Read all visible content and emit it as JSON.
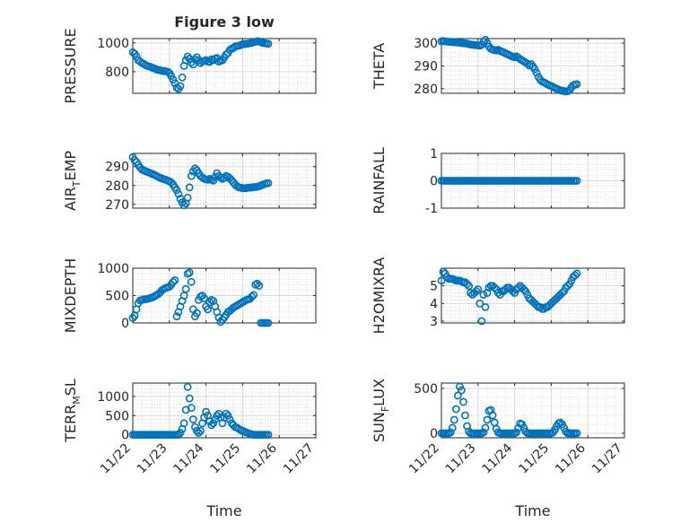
{
  "figure": {
    "title": "Figure 3 low",
    "xlabel": "Time",
    "xticks": [
      "11/22",
      "11/23",
      "11/24",
      "11/25",
      "11/26",
      "11/27"
    ],
    "marker_color": "#0072BD",
    "grid_color": "#d9d9d9",
    "axis_color": "#262626"
  },
  "chart_data": [
    {
      "type": "scatter",
      "ylabel": "PRESSURE",
      "ylim": [
        650,
        1030
      ],
      "yticks": [
        800,
        1000
      ],
      "xlim": [
        0,
        5
      ],
      "x": [
        0.0,
        0.05,
        0.1,
        0.15,
        0.2,
        0.25,
        0.3,
        0.35,
        0.4,
        0.45,
        0.5,
        0.55,
        0.6,
        0.65,
        0.7,
        0.75,
        0.8,
        0.85,
        0.9,
        0.95,
        1.0,
        1.05,
        1.1,
        1.15,
        1.2,
        1.25,
        1.3,
        1.35,
        1.4,
        1.45,
        1.5,
        1.55,
        1.6,
        1.65,
        1.7,
        1.75,
        1.8,
        1.85,
        1.9,
        1.95,
        2.0,
        2.05,
        2.1,
        2.15,
        2.2,
        2.25,
        2.3,
        2.35,
        2.4,
        2.45,
        2.5,
        2.55,
        2.6,
        2.65,
        2.7,
        2.75,
        2.8,
        2.85,
        2.9,
        2.95,
        3.0,
        3.05,
        3.1,
        3.15,
        3.2,
        3.25,
        3.3,
        3.35,
        3.4,
        3.45,
        3.5,
        3.55,
        3.6,
        3.65,
        3.7
      ],
      "y": [
        935,
        925,
        905,
        880,
        870,
        860,
        855,
        845,
        840,
        836,
        832,
        826,
        822,
        815,
        812,
        810,
        806,
        804,
        803,
        800,
        790,
        770,
        745,
        720,
        690,
        680,
        700,
        760,
        840,
        880,
        905,
        890,
        865,
        850,
        885,
        900,
        880,
        860,
        870,
        875,
        880,
        870,
        868,
        885,
        880,
        890,
        895,
        870,
        875,
        880,
        900,
        920,
        930,
        950,
        960,
        965,
        975,
        978,
        980,
        985,
        990,
        992,
        994,
        995,
        998,
        1000,
        1005,
        1008,
        1012,
        1010,
        1005,
        1000,
        998,
        996,
        994
      ]
    },
    {
      "type": "scatter",
      "ylabel": "THETA",
      "ylim": [
        278,
        302
      ],
      "yticks": [
        280,
        290,
        300
      ],
      "xlim": [
        0,
        5
      ],
      "x": [
        0.0,
        0.05,
        0.1,
        0.15,
        0.2,
        0.25,
        0.3,
        0.35,
        0.4,
        0.45,
        0.5,
        0.55,
        0.6,
        0.65,
        0.7,
        0.75,
        0.8,
        0.85,
        0.9,
        0.95,
        1.0,
        1.05,
        1.1,
        1.15,
        1.2,
        1.25,
        1.3,
        1.35,
        1.4,
        1.45,
        1.5,
        1.55,
        1.6,
        1.65,
        1.7,
        1.75,
        1.8,
        1.85,
        1.9,
        1.95,
        2.0,
        2.05,
        2.1,
        2.15,
        2.2,
        2.25,
        2.3,
        2.35,
        2.4,
        2.45,
        2.5,
        2.55,
        2.6,
        2.65,
        2.7,
        2.75,
        2.8,
        2.85,
        2.9,
        2.95,
        3.0,
        3.05,
        3.1,
        3.15,
        3.2,
        3.25,
        3.3,
        3.35,
        3.4,
        3.45,
        3.5,
        3.55,
        3.6,
        3.65,
        3.7
      ],
      "y": [
        300.8,
        300.9,
        300.8,
        300.7,
        300.6,
        300.6,
        300.5,
        300.4,
        300.4,
        300.3,
        300.2,
        300.1,
        300.0,
        299.9,
        299.8,
        299.6,
        299.4,
        299.3,
        299.2,
        299.1,
        299.0,
        298.9,
        299.3,
        300.6,
        301.5,
        300.0,
        298.5,
        297.5,
        297.2,
        296.9,
        296.8,
        297.1,
        296.6,
        296.2,
        296.0,
        295.5,
        295.2,
        294.8,
        294.4,
        294.0,
        293.8,
        294.2,
        293.6,
        293.0,
        292.5,
        292.0,
        291.5,
        291.0,
        290.2,
        290.8,
        289.8,
        288.6,
        287.0,
        285.2,
        283.9,
        283.2,
        282.8,
        282.4,
        281.9,
        281.5,
        281.2,
        280.8,
        280.3,
        280.0,
        279.6,
        279.3,
        279.1,
        279.0,
        278.8,
        278.9,
        279.3,
        280.5,
        281.5,
        281.9,
        282.0
      ]
    },
    {
      "type": "scatter",
      "ylabel": "AIR_TEMP",
      "ylim": [
        268,
        297
      ],
      "yticks": [
        270,
        280,
        290
      ],
      "xlim": [
        0,
        5
      ],
      "x": [
        0.0,
        0.05,
        0.1,
        0.15,
        0.2,
        0.25,
        0.3,
        0.35,
        0.4,
        0.45,
        0.5,
        0.55,
        0.6,
        0.65,
        0.7,
        0.75,
        0.8,
        0.85,
        0.9,
        0.95,
        1.0,
        1.05,
        1.1,
        1.15,
        1.2,
        1.25,
        1.3,
        1.35,
        1.4,
        1.45,
        1.5,
        1.55,
        1.6,
        1.65,
        1.7,
        1.75,
        1.8,
        1.85,
        1.9,
        1.95,
        2.0,
        2.05,
        2.1,
        2.15,
        2.2,
        2.25,
        2.3,
        2.35,
        2.4,
        2.45,
        2.5,
        2.55,
        2.6,
        2.65,
        2.7,
        2.75,
        2.8,
        2.85,
        2.9,
        2.95,
        3.0,
        3.05,
        3.1,
        3.15,
        3.2,
        3.25,
        3.3,
        3.35,
        3.4,
        3.45,
        3.5,
        3.55,
        3.6,
        3.65,
        3.7
      ],
      "y": [
        295.0,
        293.5,
        292.5,
        291.0,
        289.5,
        288.5,
        288.0,
        287.5,
        287.2,
        286.8,
        286.4,
        286.0,
        285.6,
        285.0,
        284.5,
        284.0,
        283.7,
        283.3,
        283.0,
        282.6,
        282.2,
        281.6,
        280.5,
        279.0,
        277.5,
        275.5,
        273.0,
        271.0,
        269.5,
        270.5,
        273.5,
        279.0,
        285.0,
        287.5,
        289.0,
        288.0,
        286.5,
        285.0,
        284.2,
        283.6,
        283.2,
        283.0,
        283.5,
        283.0,
        282.6,
        284.5,
        286.5,
        285.0,
        284.2,
        283.5,
        284.0,
        285.0,
        284.6,
        283.8,
        282.8,
        281.6,
        280.4,
        279.6,
        279.0,
        278.8,
        278.6,
        278.5,
        278.6,
        278.8,
        278.9,
        279.0,
        279.1,
        279.2,
        279.3,
        279.6,
        280.0,
        280.4,
        280.8,
        281.1,
        281.2
      ]
    },
    {
      "type": "scatter",
      "ylabel": "RAINFALL",
      "ylim": [
        -1,
        1
      ],
      "yticks": [
        -1,
        0,
        1
      ],
      "xlim": [
        0,
        5
      ],
      "x": [
        0.0,
        0.05,
        0.1,
        0.15,
        0.2,
        0.25,
        0.3,
        0.35,
        0.4,
        0.45,
        0.5,
        0.55,
        0.6,
        0.65,
        0.7,
        0.75,
        0.8,
        0.85,
        0.9,
        0.95,
        1.0,
        1.05,
        1.1,
        1.15,
        1.2,
        1.25,
        1.3,
        1.35,
        1.4,
        1.45,
        1.5,
        1.55,
        1.6,
        1.65,
        1.7,
        1.75,
        1.8,
        1.85,
        1.9,
        1.95,
        2.0,
        2.05,
        2.1,
        2.15,
        2.2,
        2.25,
        2.3,
        2.35,
        2.4,
        2.45,
        2.5,
        2.55,
        2.6,
        2.65,
        2.7,
        2.75,
        2.8,
        2.85,
        2.9,
        2.95,
        3.0,
        3.05,
        3.1,
        3.15,
        3.2,
        3.25,
        3.3,
        3.35,
        3.4,
        3.45,
        3.5,
        3.55,
        3.6,
        3.65,
        3.7
      ],
      "y": [
        0,
        0,
        0,
        0,
        0,
        0,
        0,
        0,
        0,
        0,
        0,
        0,
        0,
        0,
        0,
        0,
        0,
        0,
        0,
        0,
        0,
        0,
        0,
        0,
        0,
        0,
        0,
        0,
        0,
        0,
        0,
        0,
        0,
        0,
        0,
        0,
        0,
        0,
        0,
        0,
        0,
        0,
        0,
        0,
        0,
        0,
        0,
        0,
        0,
        0,
        0,
        0,
        0,
        0,
        0,
        0,
        0,
        0,
        0,
        0,
        0,
        0,
        0,
        0,
        0,
        0,
        0,
        0,
        0,
        0,
        0,
        0,
        0,
        0,
        0
      ]
    },
    {
      "type": "scatter",
      "ylabel": "MIXDEPTH",
      "ylim": [
        0,
        1000
      ],
      "yticks": [
        0,
        500,
        1000
      ],
      "xlim": [
        0,
        5
      ],
      "x": [
        0.0,
        0.05,
        0.1,
        0.15,
        0.2,
        0.25,
        0.3,
        0.35,
        0.4,
        0.45,
        0.5,
        0.55,
        0.6,
        0.65,
        0.7,
        0.75,
        0.8,
        0.85,
        0.9,
        0.95,
        1.0,
        1.05,
        1.1,
        1.15,
        1.2,
        1.25,
        1.3,
        1.35,
        1.4,
        1.45,
        1.5,
        1.55,
        1.6,
        1.65,
        1.7,
        1.75,
        1.8,
        1.85,
        1.9,
        1.95,
        2.0,
        2.05,
        2.1,
        2.15,
        2.2,
        2.25,
        2.3,
        2.35,
        2.4,
        2.45,
        2.5,
        2.55,
        2.6,
        2.65,
        2.7,
        2.75,
        2.8,
        2.85,
        2.9,
        2.95,
        3.0,
        3.05,
        3.1,
        3.15,
        3.2,
        3.25,
        3.3,
        3.35,
        3.4,
        3.45,
        3.5,
        3.55,
        3.6,
        3.65,
        3.7
      ],
      "y": [
        90,
        130,
        250,
        360,
        410,
        420,
        430,
        435,
        440,
        450,
        460,
        470,
        490,
        510,
        530,
        560,
        600,
        620,
        640,
        650,
        660,
        700,
        750,
        780,
        120,
        200,
        300,
        400,
        500,
        620,
        900,
        920,
        750,
        250,
        120,
        180,
        420,
        480,
        500,
        450,
        300,
        250,
        380,
        420,
        400,
        300,
        200,
        100,
        20,
        60,
        100,
        150,
        200,
        220,
        250,
        280,
        300,
        320,
        340,
        360,
        380,
        400,
        420,
        430,
        440,
        480,
        510,
        700,
        720,
        680,
        0,
        0,
        0,
        0,
        0
      ]
    },
    {
      "type": "scatter",
      "ylabel": "H2OMIXRA",
      "ylim": [
        2.9,
        6.0
      ],
      "yticks": [
        3,
        4,
        5
      ],
      "xlim": [
        0,
        5
      ],
      "x": [
        0.0,
        0.05,
        0.1,
        0.15,
        0.2,
        0.25,
        0.3,
        0.35,
        0.4,
        0.45,
        0.5,
        0.55,
        0.6,
        0.65,
        0.7,
        0.75,
        0.8,
        0.85,
        0.9,
        0.95,
        1.0,
        1.05,
        1.1,
        1.15,
        1.2,
        1.25,
        1.3,
        1.35,
        1.4,
        1.45,
        1.5,
        1.55,
        1.6,
        1.65,
        1.7,
        1.75,
        1.8,
        1.85,
        1.9,
        1.95,
        2.0,
        2.05,
        2.1,
        2.15,
        2.2,
        2.25,
        2.3,
        2.35,
        2.4,
        2.45,
        2.5,
        2.55,
        2.6,
        2.65,
        2.7,
        2.75,
        2.8,
        2.85,
        2.9,
        2.95,
        3.0,
        3.05,
        3.1,
        3.15,
        3.2,
        3.25,
        3.3,
        3.35,
        3.4,
        3.45,
        3.5,
        3.55,
        3.6,
        3.65,
        3.7
      ],
      "y": [
        5.3,
        5.8,
        5.7,
        5.5,
        5.4,
        5.4,
        5.4,
        5.35,
        5.3,
        5.3,
        5.3,
        5.25,
        5.2,
        5.2,
        5.1,
        5.0,
        4.6,
        4.5,
        4.6,
        4.7,
        4.8,
        4.0,
        3.0,
        4.5,
        3.8,
        4.6,
        4.9,
        5.0,
        5.0,
        4.9,
        4.8,
        4.6,
        4.5,
        4.7,
        4.7,
        4.8,
        4.9,
        4.9,
        4.8,
        4.7,
        4.6,
        4.8,
        4.9,
        5.0,
        4.9,
        4.8,
        4.7,
        4.5,
        4.3,
        4.2,
        4.1,
        4.0,
        3.9,
        3.8,
        3.8,
        3.7,
        3.7,
        3.8,
        3.8,
        3.9,
        4.0,
        4.1,
        4.2,
        4.3,
        4.4,
        4.5,
        4.6,
        4.7,
        4.9,
        5.0,
        5.1,
        5.3,
        5.5,
        5.6,
        5.7
      ]
    },
    {
      "type": "scatter",
      "ylabel": "TERR_MSL",
      "ylim": [
        -80,
        1350
      ],
      "yticks": [
        0,
        500,
        1000
      ],
      "xlim": [
        0,
        5
      ],
      "x": [
        0.0,
        0.05,
        0.1,
        0.15,
        0.2,
        0.25,
        0.3,
        0.35,
        0.4,
        0.45,
        0.5,
        0.55,
        0.6,
        0.65,
        0.7,
        0.75,
        0.8,
        0.85,
        0.9,
        0.95,
        1.0,
        1.05,
        1.1,
        1.15,
        1.2,
        1.25,
        1.3,
        1.35,
        1.4,
        1.45,
        1.5,
        1.55,
        1.6,
        1.65,
        1.7,
        1.75,
        1.8,
        1.85,
        1.9,
        1.95,
        2.0,
        2.05,
        2.1,
        2.15,
        2.2,
        2.25,
        2.3,
        2.35,
        2.4,
        2.45,
        2.5,
        2.55,
        2.6,
        2.65,
        2.7,
        2.75,
        2.8,
        2.85,
        2.9,
        2.95,
        3.0,
        3.05,
        3.1,
        3.15,
        3.2,
        3.25,
        3.3,
        3.35,
        3.4,
        3.45,
        3.5,
        3.55,
        3.6,
        3.65,
        3.7
      ],
      "y": [
        0,
        0,
        0,
        0,
        0,
        0,
        0,
        0,
        0,
        0,
        0,
        0,
        0,
        0,
        0,
        0,
        0,
        0,
        0,
        0,
        0,
        0,
        0,
        0,
        0,
        0,
        50,
        150,
        300,
        650,
        1250,
        950,
        700,
        400,
        200,
        100,
        50,
        100,
        300,
        450,
        600,
        500,
        350,
        250,
        300,
        400,
        500,
        550,
        450,
        300,
        450,
        550,
        500,
        400,
        300,
        250,
        200,
        180,
        150,
        120,
        100,
        80,
        60,
        40,
        20,
        10,
        0,
        0,
        0,
        0,
        0,
        0,
        0,
        0,
        0
      ]
    },
    {
      "type": "scatter",
      "ylabel": "SUN_FLUX",
      "ylim": [
        -50,
        560
      ],
      "yticks": [
        0,
        500
      ],
      "xlim": [
        0,
        5
      ],
      "x": [
        0.0,
        0.05,
        0.1,
        0.15,
        0.2,
        0.25,
        0.3,
        0.35,
        0.4,
        0.45,
        0.5,
        0.55,
        0.6,
        0.65,
        0.7,
        0.75,
        0.8,
        0.85,
        0.9,
        0.95,
        1.0,
        1.05,
        1.1,
        1.15,
        1.2,
        1.25,
        1.3,
        1.35,
        1.4,
        1.45,
        1.5,
        1.55,
        1.6,
        1.65,
        1.7,
        1.75,
        1.8,
        1.85,
        1.9,
        1.95,
        2.0,
        2.05,
        2.1,
        2.15,
        2.2,
        2.25,
        2.3,
        2.35,
        2.4,
        2.45,
        2.5,
        2.55,
        2.6,
        2.65,
        2.7,
        2.75,
        2.8,
        2.85,
        2.9,
        2.95,
        3.0,
        3.05,
        3.1,
        3.15,
        3.2,
        3.25,
        3.3,
        3.35,
        3.4,
        3.45,
        3.5,
        3.55,
        3.6,
        3.65,
        3.7
      ],
      "y": [
        0,
        0,
        0,
        0,
        0,
        10,
        60,
        150,
        270,
        420,
        520,
        480,
        350,
        200,
        80,
        20,
        0,
        0,
        0,
        0,
        0,
        0,
        0,
        10,
        60,
        150,
        250,
        260,
        200,
        120,
        50,
        10,
        0,
        0,
        0,
        0,
        0,
        0,
        0,
        0,
        0,
        10,
        60,
        110,
        100,
        60,
        20,
        0,
        0,
        0,
        0,
        0,
        0,
        0,
        0,
        0,
        0,
        0,
        0,
        0,
        0,
        10,
        40,
        80,
        110,
        120,
        100,
        60,
        20,
        0,
        0,
        0,
        0,
        0,
        0
      ]
    }
  ]
}
